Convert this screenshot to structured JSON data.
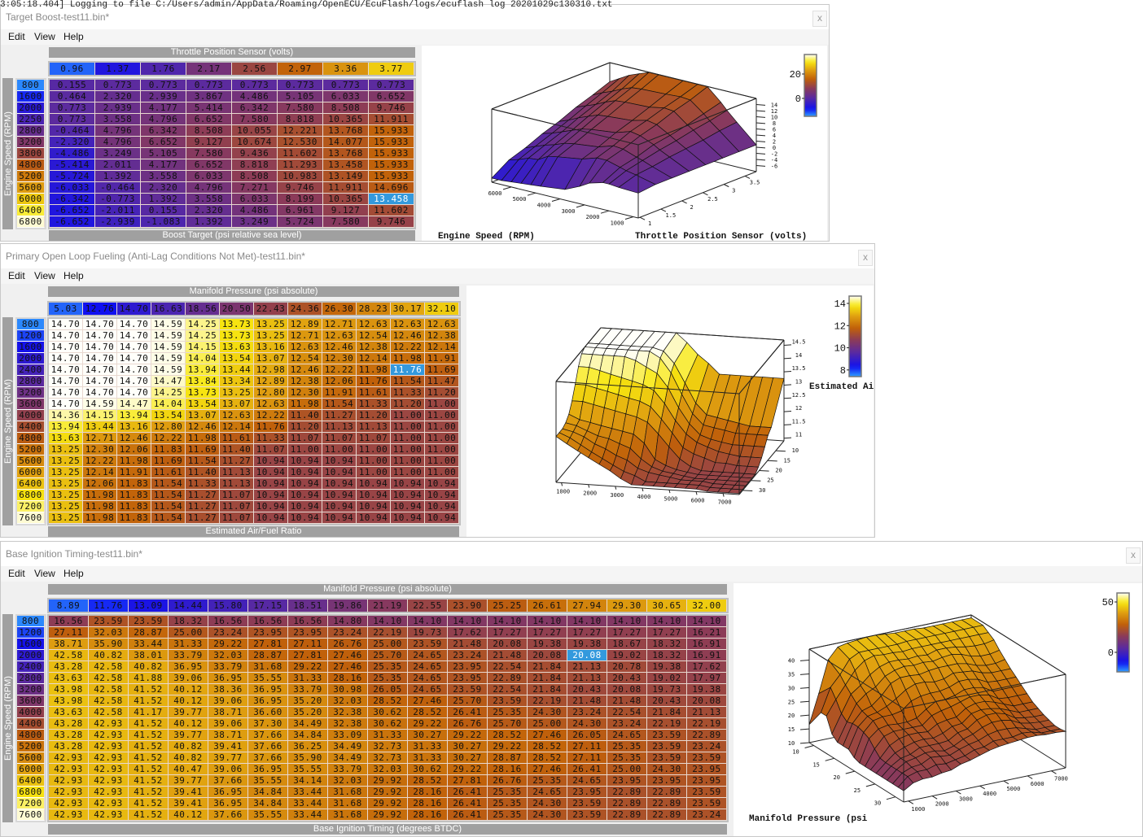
{
  "log_line": "3:05:18.404] Logging to file C:/Users/admin/AppData/Roaming/OpenECU/EcuFlash/logs/ecuflash log 20201029c130310.txt",
  "menu": [
    "Edit",
    "View",
    "Help"
  ],
  "close_glyph": "x",
  "windows": [
    {
      "title": "Target Boost-test11.bin*",
      "table": {
        "col_axis_label": "Throttle Position Sensor (volts)",
        "row_axis_label": "Engine Speed (RPM)",
        "value_label": "Boost Target (psi relative sea level)",
        "col_axis": [
          "0.96",
          "1.37",
          "1.76",
          "2.17",
          "2.56",
          "2.97",
          "3.36",
          "3.77"
        ],
        "row_axis": [
          "800",
          "1600",
          "2000",
          "2250",
          "2800",
          "3200",
          "3800",
          "4800",
          "5200",
          "5600",
          "6000",
          "6400",
          "6800"
        ],
        "values": [
          [
            "0.155",
            "0.773",
            "0.773",
            "0.773",
            "0.773",
            "0.773",
            "0.773",
            "0.773"
          ],
          [
            "0.464",
            "2.320",
            "2.939",
            "3.867",
            "4.486",
            "5.105",
            "6.033",
            "6.652"
          ],
          [
            "0.773",
            "2.939",
            "4.177",
            "5.414",
            "6.342",
            "7.580",
            "8.508",
            "9.746"
          ],
          [
            "0.773",
            "3.558",
            "4.796",
            "6.652",
            "7.580",
            "8.818",
            "10.365",
            "11.911"
          ],
          [
            "-0.464",
            "4.796",
            "6.342",
            "8.508",
            "10.055",
            "12.221",
            "13.768",
            "15.933"
          ],
          [
            "-2.320",
            "4.796",
            "6.652",
            "9.127",
            "10.674",
            "12.530",
            "14.077",
            "15.933"
          ],
          [
            "-4.486",
            "3.249",
            "5.105",
            "7.580",
            "9.436",
            "11.602",
            "13.768",
            "15.933"
          ],
          [
            "-5.414",
            "2.011",
            "4.177",
            "6.652",
            "8.818",
            "11.293",
            "13.458",
            "15.933"
          ],
          [
            "-5.724",
            "1.392",
            "3.558",
            "6.033",
            "8.508",
            "10.983",
            "13.149",
            "15.933"
          ],
          [
            "-6.033",
            "-0.464",
            "2.320",
            "4.796",
            "7.271",
            "9.746",
            "11.911",
            "14.696"
          ],
          [
            "-6.342",
            "-0.773",
            "1.392",
            "3.558",
            "6.033",
            "8.199",
            "10.365",
            "13.458"
          ],
          [
            "-6.652",
            "-2.011",
            "0.155",
            "2.320",
            "4.486",
            "6.961",
            "9.127",
            "11.602"
          ],
          [
            "-6.652",
            "-2.939",
            "-1.083",
            "1.392",
            "3.249",
            "5.724",
            "7.580",
            "9.746"
          ]
        ],
        "selected": {
          "row": 10,
          "col": 7
        },
        "color_range": [
          -14.7,
          36
        ]
      },
      "plot": {
        "x_label": "Throttle Position Sensor (volts)",
        "y_label": "Engine Speed (RPM)",
        "x_ticks": [
          "1",
          "1.5",
          "2",
          "2.5",
          "3",
          "3.5"
        ],
        "y_ticks": [
          "1000",
          "2000",
          "3000",
          "4000",
          "5000",
          "6000"
        ],
        "z_ticks": [
          "-6",
          "-4",
          "-2",
          "0",
          "2",
          "4",
          "6",
          "8",
          "10",
          "12",
          "14"
        ],
        "colorbar_ticks": [
          "20",
          "0"
        ]
      }
    },
    {
      "title": "Primary Open Loop Fueling (Anti-Lag Conditions Not Met)-test11.bin*",
      "table": {
        "col_axis_label": "Manifold Pressure (psi absolute)",
        "row_axis_label": "Engine Speed (RPM)",
        "value_label": "Estimated Air/Fuel Ratio",
        "col_axis": [
          "5.03",
          "12.76",
          "14.70",
          "16.63",
          "18.56",
          "20.50",
          "22.43",
          "24.36",
          "26.30",
          "28.23",
          "30.17",
          "32.10"
        ],
        "row_axis": [
          "800",
          "1200",
          "1600",
          "2000",
          "2400",
          "2800",
          "3200",
          "3600",
          "4000",
          "4400",
          "4800",
          "5200",
          "5600",
          "6000",
          "6400",
          "6800",
          "7200",
          "7600"
        ],
        "values": [
          [
            "14.70",
            "14.70",
            "14.70",
            "14.59",
            "14.25",
            "13.73",
            "13.25",
            "12.89",
            "12.71",
            "12.63",
            "12.63",
            "12.63"
          ],
          [
            "14.70",
            "14.70",
            "14.70",
            "14.59",
            "14.25",
            "13.73",
            "13.25",
            "12.71",
            "12.63",
            "12.54",
            "12.46",
            "12.38"
          ],
          [
            "14.70",
            "14.70",
            "14.70",
            "14.59",
            "14.15",
            "13.63",
            "13.16",
            "12.63",
            "12.46",
            "12.38",
            "12.22",
            "12.14"
          ],
          [
            "14.70",
            "14.70",
            "14.70",
            "14.59",
            "14.04",
            "13.54",
            "13.07",
            "12.54",
            "12.30",
            "12.14",
            "11.98",
            "11.91"
          ],
          [
            "14.70",
            "14.70",
            "14.70",
            "14.59",
            "13.94",
            "13.44",
            "12.98",
            "12.46",
            "12.22",
            "11.98",
            "11.76",
            "11.69"
          ],
          [
            "14.70",
            "14.70",
            "14.70",
            "14.47",
            "13.84",
            "13.34",
            "12.89",
            "12.38",
            "12.06",
            "11.76",
            "11.54",
            "11.47"
          ],
          [
            "14.70",
            "14.70",
            "14.70",
            "14.25",
            "13.73",
            "13.25",
            "12.80",
            "12.30",
            "11.91",
            "11.61",
            "11.33",
            "11.20"
          ],
          [
            "14.70",
            "14.59",
            "14.47",
            "14.04",
            "13.54",
            "13.07",
            "12.63",
            "11.98",
            "11.54",
            "11.33",
            "11.20",
            "11.00"
          ],
          [
            "14.36",
            "14.15",
            "13.94",
            "13.54",
            "13.07",
            "12.63",
            "12.22",
            "11.40",
            "11.27",
            "11.20",
            "11.00",
            "11.00"
          ],
          [
            "13.94",
            "13.44",
            "13.16",
            "12.80",
            "12.46",
            "12.14",
            "11.76",
            "11.20",
            "11.13",
            "11.13",
            "11.00",
            "11.00"
          ],
          [
            "13.63",
            "12.71",
            "12.46",
            "12.22",
            "11.98",
            "11.61",
            "11.33",
            "11.07",
            "11.07",
            "11.07",
            "11.00",
            "11.00"
          ],
          [
            "13.25",
            "12.30",
            "12.06",
            "11.83",
            "11.69",
            "11.40",
            "11.07",
            "11.00",
            "11.00",
            "11.00",
            "11.00",
            "11.00"
          ],
          [
            "13.25",
            "12.22",
            "11.98",
            "11.69",
            "11.54",
            "11.27",
            "10.94",
            "10.94",
            "10.94",
            "11.00",
            "11.00",
            "11.00"
          ],
          [
            "13.25",
            "12.14",
            "11.91",
            "11.61",
            "11.40",
            "11.13",
            "10.94",
            "10.94",
            "10.94",
            "11.00",
            "11.00",
            "11.00"
          ],
          [
            "13.25",
            "12.06",
            "11.83",
            "11.54",
            "11.33",
            "11.13",
            "10.94",
            "10.94",
            "10.94",
            "10.94",
            "10.94",
            "10.94"
          ],
          [
            "13.25",
            "11.98",
            "11.83",
            "11.54",
            "11.27",
            "11.07",
            "10.94",
            "10.94",
            "10.94",
            "10.94",
            "10.94",
            "10.94"
          ],
          [
            "13.25",
            "11.98",
            "11.83",
            "11.54",
            "11.27",
            "11.07",
            "10.94",
            "10.94",
            "10.94",
            "10.94",
            "10.94",
            "10.94"
          ],
          [
            "13.25",
            "11.98",
            "11.83",
            "11.54",
            "11.27",
            "11.07",
            "10.94",
            "10.94",
            "10.94",
            "10.94",
            "10.94",
            "10.94"
          ]
        ],
        "selected": {
          "row": 4,
          "col": 10
        },
        "color_range": [
          7.4,
          14.66
        ]
      },
      "plot": {
        "x_label": "Estimated Ai",
        "x_ticks": [
          "10",
          "15",
          "20",
          "25",
          "30"
        ],
        "y_ticks": [
          "1000",
          "2000",
          "3000",
          "4000",
          "5000",
          "6000",
          "7000"
        ],
        "z_ticks": [
          "11",
          "11.5",
          "12",
          "12.5",
          "13",
          "13.5",
          "14",
          "14.5"
        ],
        "colorbar_ticks": [
          "14",
          "12",
          "10",
          "8"
        ]
      }
    },
    {
      "title": "Base Ignition Timing-test11.bin*",
      "table": {
        "col_axis_label": "Manifold Pressure (psi absolute)",
        "row_axis_label": "Engine Speed (RPM)",
        "value_label": "Base Ignition Timing (degrees BTDC)",
        "col_axis": [
          "8.89",
          "11.76",
          "13.09",
          "14.44",
          "15.80",
          "17.15",
          "18.51",
          "19.86",
          "21.19",
          "22.55",
          "23.90",
          "25.25",
          "26.61",
          "27.94",
          "29.30",
          "30.65",
          "32.00"
        ],
        "row_axis": [
          "800",
          "1200",
          "1600",
          "2000",
          "2400",
          "2800",
          "3200",
          "3600",
          "4000",
          "4400",
          "4800",
          "5200",
          "5600",
          "6000",
          "6400",
          "6800",
          "7200",
          "7600"
        ],
        "values": [
          [
            "16.56",
            "23.59",
            "23.59",
            "18.32",
            "16.56",
            "16.56",
            "16.56",
            "14.80",
            "14.10",
            "14.10",
            "14.10",
            "14.10",
            "14.10",
            "14.10",
            "14.10",
            "14.10",
            "14.10"
          ],
          [
            "27.11",
            "32.03",
            "28.87",
            "25.00",
            "23.24",
            "23.95",
            "23.95",
            "23.24",
            "22.19",
            "19.73",
            "17.62",
            "17.27",
            "17.27",
            "17.27",
            "17.27",
            "17.27",
            "16.21"
          ],
          [
            "38.71",
            "35.90",
            "33.44",
            "31.33",
            "29.22",
            "27.81",
            "27.11",
            "26.76",
            "25.00",
            "23.59",
            "21.48",
            "20.08",
            "19.38",
            "19.38",
            "18.67",
            "18.32",
            "16.91"
          ],
          [
            "42.58",
            "40.82",
            "38.01",
            "33.79",
            "32.03",
            "28.87",
            "27.81",
            "27.46",
            "25.70",
            "24.65",
            "23.24",
            "21.48",
            "20.08",
            "20.08",
            "19.02",
            "18.32",
            "16.91"
          ],
          [
            "43.28",
            "42.58",
            "40.82",
            "36.95",
            "33.79",
            "31.68",
            "29.22",
            "27.46",
            "25.35",
            "24.65",
            "23.95",
            "22.54",
            "21.84",
            "21.13",
            "20.78",
            "19.38",
            "17.62"
          ],
          [
            "43.63",
            "42.58",
            "41.88",
            "39.06",
            "36.95",
            "35.55",
            "31.33",
            "28.16",
            "25.35",
            "24.65",
            "23.95",
            "22.89",
            "21.84",
            "21.13",
            "20.43",
            "19.02",
            "17.97"
          ],
          [
            "43.98",
            "42.58",
            "41.52",
            "40.12",
            "38.36",
            "36.95",
            "33.79",
            "30.98",
            "26.05",
            "24.65",
            "23.59",
            "22.54",
            "21.84",
            "20.43",
            "20.08",
            "19.73",
            "19.38"
          ],
          [
            "43.98",
            "42.58",
            "41.52",
            "40.12",
            "39.06",
            "36.95",
            "35.20",
            "32.03",
            "28.52",
            "27.46",
            "25.70",
            "23.59",
            "22.19",
            "21.48",
            "21.48",
            "20.43",
            "20.08"
          ],
          [
            "43.63",
            "42.58",
            "41.17",
            "39.77",
            "38.71",
            "36.60",
            "35.20",
            "32.38",
            "30.62",
            "28.52",
            "26.41",
            "25.35",
            "24.30",
            "23.24",
            "22.54",
            "21.84",
            "21.13"
          ],
          [
            "43.28",
            "42.93",
            "41.52",
            "40.12",
            "39.06",
            "37.30",
            "34.49",
            "32.38",
            "30.62",
            "29.22",
            "26.76",
            "25.70",
            "25.00",
            "24.30",
            "23.24",
            "22.19",
            "22.19"
          ],
          [
            "43.28",
            "42.93",
            "41.52",
            "39.77",
            "38.71",
            "37.66",
            "34.84",
            "33.09",
            "31.33",
            "30.27",
            "29.22",
            "28.52",
            "27.46",
            "26.05",
            "24.65",
            "23.59",
            "22.89"
          ],
          [
            "43.28",
            "42.93",
            "41.52",
            "40.82",
            "39.41",
            "37.66",
            "36.25",
            "34.49",
            "32.73",
            "31.33",
            "30.27",
            "29.22",
            "28.52",
            "27.11",
            "25.35",
            "23.59",
            "23.24"
          ],
          [
            "42.93",
            "42.93",
            "41.52",
            "40.82",
            "39.77",
            "37.66",
            "35.90",
            "34.49",
            "32.73",
            "31.33",
            "30.27",
            "28.87",
            "28.52",
            "27.11",
            "25.35",
            "23.59",
            "23.59"
          ],
          [
            "42.93",
            "42.93",
            "41.52",
            "40.47",
            "39.06",
            "36.95",
            "35.55",
            "33.79",
            "32.03",
            "30.62",
            "29.22",
            "28.16",
            "27.46",
            "26.41",
            "25.00",
            "24.30",
            "23.95"
          ],
          [
            "42.93",
            "42.93",
            "41.52",
            "39.77",
            "37.66",
            "35.55",
            "34.14",
            "32.03",
            "29.92",
            "28.52",
            "27.81",
            "26.76",
            "25.35",
            "24.65",
            "23.95",
            "23.95",
            "23.95"
          ],
          [
            "42.93",
            "42.93",
            "41.52",
            "39.41",
            "36.95",
            "34.84",
            "33.44",
            "31.68",
            "29.92",
            "28.16",
            "26.41",
            "25.35",
            "24.65",
            "23.95",
            "22.89",
            "22.89",
            "23.59"
          ],
          [
            "42.93",
            "42.93",
            "41.52",
            "39.41",
            "36.95",
            "34.84",
            "33.44",
            "31.68",
            "29.92",
            "28.16",
            "26.41",
            "25.35",
            "24.30",
            "23.59",
            "22.89",
            "22.89",
            "23.59"
          ],
          [
            "42.93",
            "42.93",
            "41.52",
            "40.12",
            "37.66",
            "35.55",
            "33.44",
            "31.68",
            "29.92",
            "28.16",
            "26.41",
            "25.35",
            "24.30",
            "23.59",
            "22.89",
            "22.89",
            "23.24"
          ]
        ],
        "selected": {
          "row": 3,
          "col": 13
        },
        "color_range": [
          -19.4,
          58.9
        ]
      },
      "plot": {
        "x_label": "Manifold Pressure (psi",
        "x_ticks": [
          "10",
          "15",
          "20",
          "25",
          "30"
        ],
        "y_ticks": [
          "1000",
          "2000",
          "3000",
          "4000",
          "5000",
          "6000",
          "7000"
        ],
        "z_ticks": [
          "10",
          "15",
          "20",
          "25",
          "30",
          "35",
          "40"
        ],
        "colorbar_ticks": [
          "50",
          "0"
        ]
      }
    }
  ]
}
